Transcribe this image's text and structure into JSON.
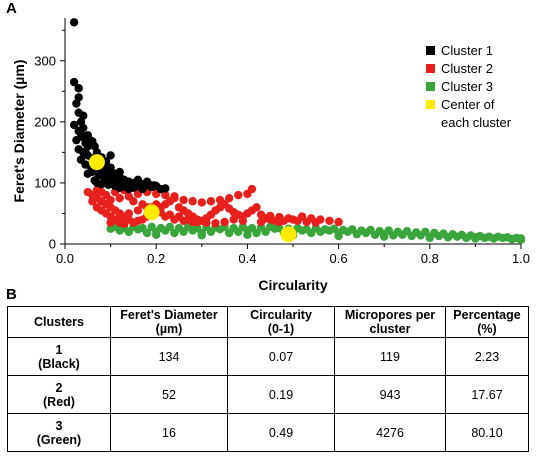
{
  "panel_a_label": "A",
  "panel_b_label": "B",
  "chart_data": {
    "type": "scatter",
    "xlabel": "Circularity",
    "ylabel": "Feret's Diameter (µm)",
    "xlim": [
      0,
      1.0
    ],
    "ylim": [
      0,
      370
    ],
    "xticks": [
      "0.0",
      "0.2",
      "0.4",
      "0.6",
      "0.8",
      "1.0"
    ],
    "yticks": [
      "0",
      "100",
      "200",
      "300"
    ],
    "xtick_values": [
      0.0,
      0.2,
      0.4,
      0.6,
      0.8,
      1.0
    ],
    "ytick_values": [
      0,
      100,
      200,
      300
    ],
    "series": [
      {
        "name": "Cluster 1",
        "color": "#000000",
        "points": [
          [
            0.02,
            363
          ],
          [
            0.02,
            265
          ],
          [
            0.03,
            255
          ],
          [
            0.025,
            230
          ],
          [
            0.03,
            215
          ],
          [
            0.035,
            200
          ],
          [
            0.02,
            195
          ],
          [
            0.03,
            185
          ],
          [
            0.04,
            175
          ],
          [
            0.045,
            165
          ],
          [
            0.05,
            160
          ],
          [
            0.03,
            155
          ],
          [
            0.04,
            150
          ],
          [
            0.05,
            145
          ],
          [
            0.06,
            140
          ],
          [
            0.035,
            138
          ],
          [
            0.045,
            130
          ],
          [
            0.055,
            128
          ],
          [
            0.07,
            125
          ],
          [
            0.08,
            120
          ],
          [
            0.06,
            118
          ],
          [
            0.05,
            115
          ],
          [
            0.075,
            112
          ],
          [
            0.085,
            110
          ],
          [
            0.09,
            108
          ],
          [
            0.1,
            105
          ],
          [
            0.065,
            104
          ],
          [
            0.07,
            100
          ],
          [
            0.08,
            98
          ],
          [
            0.095,
            97
          ],
          [
            0.11,
            95
          ],
          [
            0.12,
            92
          ],
          [
            0.13,
            94
          ],
          [
            0.14,
            90
          ],
          [
            0.15,
            92
          ],
          [
            0.16,
            95
          ],
          [
            0.17,
            90
          ],
          [
            0.19,
            93
          ],
          [
            0.2,
            95
          ],
          [
            0.21,
            90
          ],
          [
            0.22,
            91
          ],
          [
            0.1,
            145
          ],
          [
            0.11,
            115
          ],
          [
            0.12,
            110
          ],
          [
            0.13,
            105
          ],
          [
            0.14,
            102
          ],
          [
            0.15,
            100
          ],
          [
            0.16,
            105
          ],
          [
            0.17,
            98
          ],
          [
            0.18,
            102
          ],
          [
            0.04,
            190
          ],
          [
            0.05,
            178
          ],
          [
            0.06,
            168
          ],
          [
            0.03,
            240
          ],
          [
            0.04,
            210
          ],
          [
            0.07,
            150
          ],
          [
            0.09,
            135
          ],
          [
            0.08,
            142
          ],
          [
            0.1,
            125
          ],
          [
            0.12,
            118
          ],
          [
            0.125,
            100
          ],
          [
            0.105,
            98
          ],
          [
            0.09,
            100
          ],
          [
            0.115,
            104
          ],
          [
            0.135,
            98
          ],
          [
            0.145,
            96
          ],
          [
            0.155,
            99
          ],
          [
            0.175,
            95
          ],
          [
            0.185,
            97
          ],
          [
            0.195,
            96
          ],
          [
            0.055,
            170
          ],
          [
            0.065,
            160
          ],
          [
            0.035,
            180
          ],
          [
            0.045,
            150
          ],
          [
            0.025,
            170
          ],
          [
            0.075,
            135
          ],
          [
            0.085,
            128
          ],
          [
            0.095,
            118
          ],
          [
            0.1,
            112
          ],
          [
            0.11,
            108
          ]
        ]
      },
      {
        "name": "Cluster 2",
        "color": "#e8201c",
        "points": [
          [
            0.05,
            85
          ],
          [
            0.06,
            80
          ],
          [
            0.07,
            75
          ],
          [
            0.08,
            70
          ],
          [
            0.09,
            65
          ],
          [
            0.1,
            60
          ],
          [
            0.11,
            55
          ],
          [
            0.12,
            50
          ],
          [
            0.13,
            45
          ],
          [
            0.14,
            40
          ],
          [
            0.06,
            70
          ],
          [
            0.07,
            60
          ],
          [
            0.08,
            55
          ],
          [
            0.09,
            50
          ],
          [
            0.1,
            45
          ],
          [
            0.11,
            40
          ],
          [
            0.12,
            35
          ],
          [
            0.13,
            33
          ],
          [
            0.15,
            35
          ],
          [
            0.16,
            38
          ],
          [
            0.17,
            40
          ],
          [
            0.18,
            45
          ],
          [
            0.19,
            50
          ],
          [
            0.2,
            55
          ],
          [
            0.21,
            60
          ],
          [
            0.22,
            65
          ],
          [
            0.23,
            70
          ],
          [
            0.24,
            75
          ],
          [
            0.25,
            60
          ],
          [
            0.26,
            55
          ],
          [
            0.27,
            50
          ],
          [
            0.28,
            45
          ],
          [
            0.29,
            40
          ],
          [
            0.3,
            38
          ],
          [
            0.31,
            42
          ],
          [
            0.32,
            48
          ],
          [
            0.33,
            55
          ],
          [
            0.34,
            60
          ],
          [
            0.35,
            65
          ],
          [
            0.36,
            58
          ],
          [
            0.37,
            52
          ],
          [
            0.38,
            48
          ],
          [
            0.39,
            45
          ],
          [
            0.4,
            50
          ],
          [
            0.41,
            55
          ],
          [
            0.42,
            60
          ],
          [
            0.43,
            48
          ],
          [
            0.44,
            42
          ],
          [
            0.45,
            40
          ],
          [
            0.46,
            38
          ],
          [
            0.47,
            36
          ],
          [
            0.48,
            38
          ],
          [
            0.5,
            40
          ],
          [
            0.52,
            45
          ],
          [
            0.54,
            42
          ],
          [
            0.56,
            40
          ],
          [
            0.58,
            38
          ],
          [
            0.6,
            36
          ],
          [
            0.41,
            90
          ],
          [
            0.4,
            82
          ],
          [
            0.38,
            80
          ],
          [
            0.36,
            75
          ],
          [
            0.34,
            72
          ],
          [
            0.32,
            70
          ],
          [
            0.3,
            68
          ],
          [
            0.28,
            70
          ],
          [
            0.26,
            72
          ],
          [
            0.24,
            78
          ],
          [
            0.22,
            80
          ],
          [
            0.2,
            82
          ],
          [
            0.18,
            85
          ],
          [
            0.16,
            82
          ],
          [
            0.14,
            78
          ],
          [
            0.12,
            75
          ],
          [
            0.1,
            72
          ],
          [
            0.09,
            80
          ],
          [
            0.08,
            85
          ],
          [
            0.07,
            88
          ],
          [
            0.11,
            85
          ],
          [
            0.13,
            88
          ],
          [
            0.15,
            70
          ],
          [
            0.17,
            65
          ],
          [
            0.19,
            60
          ],
          [
            0.21,
            52
          ],
          [
            0.23,
            48
          ],
          [
            0.25,
            45
          ],
          [
            0.27,
            40
          ],
          [
            0.29,
            36
          ],
          [
            0.31,
            35
          ],
          [
            0.33,
            34
          ],
          [
            0.35,
            36
          ],
          [
            0.37,
            40
          ],
          [
            0.39,
            38
          ],
          [
            0.43,
            36
          ],
          [
            0.45,
            46
          ],
          [
            0.47,
            44
          ],
          [
            0.49,
            42
          ],
          [
            0.51,
            38
          ],
          [
            0.53,
            36
          ],
          [
            0.55,
            35
          ],
          [
            0.1,
            35
          ],
          [
            0.12,
            38
          ],
          [
            0.14,
            50
          ],
          [
            0.16,
            55
          ],
          [
            0.18,
            60
          ],
          [
            0.2,
            65
          ],
          [
            0.22,
            45
          ],
          [
            0.24,
            40
          ],
          [
            0.26,
            38
          ],
          [
            0.28,
            36
          ]
        ]
      },
      {
        "name": "Cluster 3",
        "color": "#3aa53a",
        "points": [
          [
            0.1,
            25
          ],
          [
            0.12,
            22
          ],
          [
            0.14,
            20
          ],
          [
            0.16,
            24
          ],
          [
            0.18,
            18
          ],
          [
            0.2,
            20
          ],
          [
            0.22,
            22
          ],
          [
            0.24,
            18
          ],
          [
            0.26,
            20
          ],
          [
            0.28,
            22
          ],
          [
            0.3,
            18
          ],
          [
            0.32,
            20
          ],
          [
            0.34,
            24
          ],
          [
            0.36,
            18
          ],
          [
            0.38,
            20
          ],
          [
            0.4,
            22
          ],
          [
            0.42,
            18
          ],
          [
            0.44,
            20
          ],
          [
            0.46,
            25
          ],
          [
            0.48,
            18
          ],
          [
            0.5,
            20
          ],
          [
            0.52,
            22
          ],
          [
            0.54,
            18
          ],
          [
            0.56,
            20
          ],
          [
            0.58,
            22
          ],
          [
            0.6,
            18
          ],
          [
            0.62,
            20
          ],
          [
            0.64,
            16
          ],
          [
            0.66,
            18
          ],
          [
            0.68,
            15
          ],
          [
            0.7,
            16
          ],
          [
            0.72,
            14
          ],
          [
            0.74,
            15
          ],
          [
            0.76,
            13
          ],
          [
            0.78,
            14
          ],
          [
            0.8,
            12
          ],
          [
            0.82,
            13
          ],
          [
            0.84,
            11
          ],
          [
            0.86,
            12
          ],
          [
            0.88,
            10
          ],
          [
            0.9,
            11
          ],
          [
            0.92,
            10
          ],
          [
            0.94,
            9
          ],
          [
            0.96,
            10
          ],
          [
            0.98,
            8
          ],
          [
            1.0,
            9
          ],
          [
            0.11,
            28
          ],
          [
            0.13,
            26
          ],
          [
            0.15,
            28
          ],
          [
            0.17,
            26
          ],
          [
            0.19,
            28
          ],
          [
            0.21,
            26
          ],
          [
            0.23,
            28
          ],
          [
            0.25,
            26
          ],
          [
            0.27,
            28
          ],
          [
            0.29,
            26
          ],
          [
            0.31,
            28
          ],
          [
            0.33,
            27
          ],
          [
            0.35,
            28
          ],
          [
            0.37,
            26
          ],
          [
            0.39,
            28
          ],
          [
            0.41,
            26
          ],
          [
            0.43,
            27
          ],
          [
            0.45,
            28
          ],
          [
            0.47,
            26
          ],
          [
            0.49,
            25
          ],
          [
            0.51,
            26
          ],
          [
            0.53,
            24
          ],
          [
            0.55,
            26
          ],
          [
            0.57,
            24
          ],
          [
            0.59,
            25
          ],
          [
            0.61,
            23
          ],
          [
            0.63,
            24
          ],
          [
            0.65,
            22
          ],
          [
            0.67,
            23
          ],
          [
            0.69,
            21
          ],
          [
            0.71,
            22
          ],
          [
            0.73,
            20
          ],
          [
            0.75,
            21
          ],
          [
            0.77,
            19
          ],
          [
            0.79,
            20
          ],
          [
            0.81,
            18
          ],
          [
            0.83,
            17
          ],
          [
            0.85,
            16
          ],
          [
            0.87,
            15
          ],
          [
            0.89,
            14
          ],
          [
            0.91,
            13
          ],
          [
            0.93,
            12
          ],
          [
            0.95,
            12
          ],
          [
            0.97,
            11
          ],
          [
            0.99,
            10
          ],
          [
            0.2,
            15
          ],
          [
            0.3,
            14
          ],
          [
            0.4,
            15
          ],
          [
            0.5,
            14
          ],
          [
            0.6,
            13
          ],
          [
            0.7,
            12
          ],
          [
            0.8,
            10
          ],
          [
            0.9,
            9
          ],
          [
            1.0,
            7
          ]
        ]
      }
    ],
    "centers": {
      "name": "Center of\neach cluster",
      "color": "#ffeb00",
      "points": [
        [
          0.07,
          134
        ],
        [
          0.19,
          52
        ],
        [
          0.49,
          16
        ]
      ]
    }
  },
  "table": {
    "headers": [
      "Clusters",
      "Feret's Diameter\n(µm)",
      "Circularity\n(0-1)",
      "Micropores per\ncluster",
      "Percentage\n(%)"
    ],
    "rows": [
      {
        "cluster": "1\n(Black)",
        "feret": "134",
        "circularity": "0.07",
        "micropores": "119",
        "percentage": "2.23"
      },
      {
        "cluster": "2\n(Red)",
        "feret": "52",
        "circularity": "0.19",
        "micropores": "943",
        "percentage": "17.67"
      },
      {
        "cluster": "3\n(Green)",
        "feret": "16",
        "circularity": "0.49",
        "micropores": "4276",
        "percentage": "80.10"
      }
    ]
  }
}
